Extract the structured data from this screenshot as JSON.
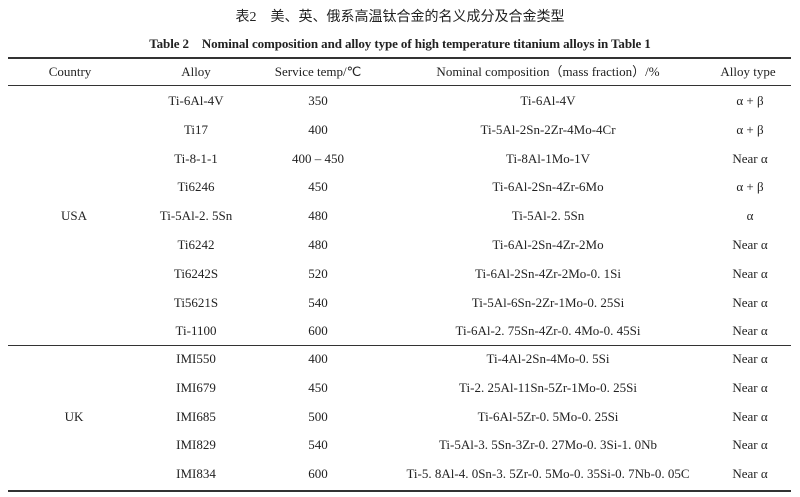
{
  "title_cn": "表2　美、英、俄系高温钛合金的名义成分及合金类型",
  "title_en": "Table 2　Nominal composition and alloy type of high temperature titanium alloys in Table 1",
  "headers": [
    "Country",
    "Alloy",
    "Service temp/℃",
    "Nominal composition（mass fraction）/%",
    "Alloy type"
  ],
  "groups": [
    {
      "country": "USA",
      "rows": [
        {
          "alloy": "Ti-6Al-4V",
          "temp": "350",
          "composition": "Ti-6Al-4V",
          "type": "α + β"
        },
        {
          "alloy": "Ti17",
          "temp": "400",
          "composition": "Ti-5Al-2Sn-2Zr-4Mo-4Cr",
          "type": "α + β"
        },
        {
          "alloy": "Ti-8-1-1",
          "temp": "400 – 450",
          "composition": "Ti-8Al-1Mo-1V",
          "type": "Near α"
        },
        {
          "alloy": "Ti6246",
          "temp": "450",
          "composition": "Ti-6Al-2Sn-4Zr-6Mo",
          "type": "α + β"
        },
        {
          "alloy": "Ti-5Al-2. 5Sn",
          "temp": "480",
          "composition": "Ti-5Al-2. 5Sn",
          "type": "α"
        },
        {
          "alloy": "Ti6242",
          "temp": "480",
          "composition": "Ti-6Al-2Sn-4Zr-2Mo",
          "type": "Near α"
        },
        {
          "alloy": "Ti6242S",
          "temp": "520",
          "composition": "Ti-6Al-2Sn-4Zr-2Mo-0. 1Si",
          "type": "Near α"
        },
        {
          "alloy": "Ti5621S",
          "temp": "540",
          "composition": "Ti-5Al-6Sn-2Zr-1Mo-0. 25Si",
          "type": "Near α"
        },
        {
          "alloy": "Ti-1100",
          "temp": "600",
          "composition": "Ti-6Al-2. 75Sn-4Zr-0. 4Mo-0. 45Si",
          "type": "Near α"
        }
      ]
    },
    {
      "country": "UK",
      "rows": [
        {
          "alloy": "IMI550",
          "temp": "400",
          "composition": "Ti-4Al-2Sn-4Mo-0. 5Si",
          "type": "Near α"
        },
        {
          "alloy": "IMI679",
          "temp": "450",
          "composition": "Ti-2. 25Al-11Sn-5Zr-1Mo-0. 25Si",
          "type": "Near α"
        },
        {
          "alloy": "IMI685",
          "temp": "500",
          "composition": "Ti-6Al-5Zr-0. 5Mo-0. 25Si",
          "type": "Near α"
        },
        {
          "alloy": "IMI829",
          "temp": "540",
          "composition": "Ti-5Al-3. 5Sn-3Zr-0. 27Mo-0. 3Si-1. 0Nb",
          "type": "Near α"
        },
        {
          "alloy": "IMI834",
          "temp": "600",
          "composition": "Ti-5. 8Al-4. 0Sn-3. 5Zr-0. 5Mo-0. 35Si-0. 7Nb-0. 05C",
          "type": "Near α"
        }
      ]
    }
  ]
}
